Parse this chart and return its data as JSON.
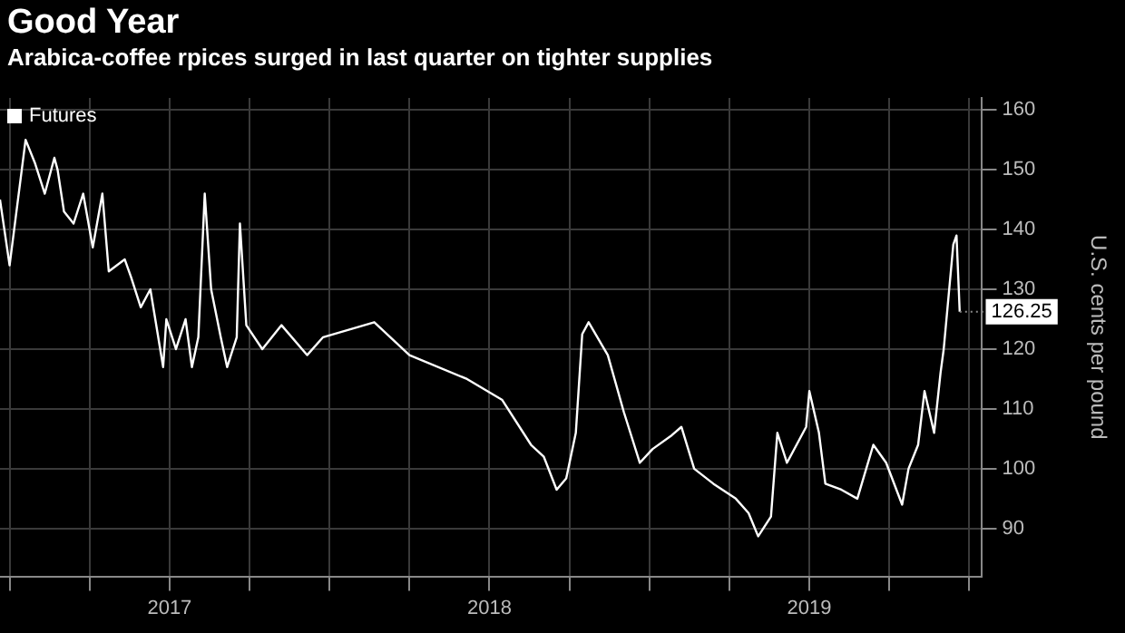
{
  "chart_data": {
    "type": "line",
    "title": "Good Year",
    "subtitle": "Arabica-coffee rpices surged in last quarter on tighter supplies",
    "ylabel": "U.S. cents per pound",
    "series": [
      {
        "name": "Futures",
        "color": "#ffffff",
        "x": [
          2016.97,
          2017.0,
          2017.05,
          2017.08,
          2017.11,
          2017.14,
          2017.15,
          2017.17,
          2017.2,
          2017.23,
          2017.26,
          2017.29,
          2017.31,
          2017.36,
          2017.38,
          2017.41,
          2017.44,
          2017.48,
          2017.49,
          2017.52,
          2017.55,
          2017.57,
          2017.59,
          2017.61,
          2017.63,
          2017.66,
          2017.68,
          2017.71,
          2017.72,
          2017.74,
          2017.79,
          2017.85,
          2017.93,
          2017.98,
          2018.14,
          2018.25,
          2018.43,
          2018.54,
          2018.63,
          2018.67,
          2018.71,
          2018.74,
          2018.77,
          2018.79,
          2018.81,
          2018.87,
          2018.92,
          2018.97,
          2019.01,
          2019.07,
          2019.1,
          2019.14,
          2019.2,
          2019.27,
          2019.31,
          2019.34,
          2019.38,
          2019.4,
          2019.43,
          2019.49,
          2019.5,
          2019.53,
          2019.55,
          2019.6,
          2019.65,
          2019.7,
          2019.74,
          2019.79,
          2019.81,
          2019.84,
          2019.86,
          2019.89,
          2019.91,
          2019.92,
          2019.95,
          2019.96,
          2019.97
        ],
        "values": [
          145,
          134,
          155,
          151,
          146,
          152,
          150,
          143,
          141,
          146,
          137,
          146,
          133,
          135,
          132,
          127,
          130,
          117,
          125,
          120,
          125,
          117,
          122,
          146,
          130,
          122,
          117,
          122,
          141,
          124,
          120,
          124,
          119,
          122,
          124.5,
          119,
          115,
          111.5,
          104,
          102,
          96.5,
          98.4,
          106,
          122.5,
          124.5,
          119,
          109.5,
          101,
          103.3,
          105.6,
          107,
          100,
          97.5,
          95,
          92.6,
          88.7,
          92,
          106,
          101,
          107,
          113,
          106,
          97.5,
          96.5,
          95,
          104,
          101,
          94,
          100,
          104,
          113,
          106,
          116,
          120,
          137.5,
          139,
          126.25
        ]
      }
    ],
    "xlim": [
      2016.97,
      2020.04
    ],
    "xticks": [
      {
        "value": 2017,
        "label": null
      },
      {
        "value": 2017.25,
        "label": null
      },
      {
        "value": 2017.5,
        "label": "2017"
      },
      {
        "value": 2017.75,
        "label": null
      },
      {
        "value": 2018,
        "label": null
      },
      {
        "value": 2018.25,
        "label": null
      },
      {
        "value": 2018.5,
        "label": "2018"
      },
      {
        "value": 2018.75,
        "label": null
      },
      {
        "value": 2019,
        "label": null
      },
      {
        "value": 2019.25,
        "label": null
      },
      {
        "value": 2019.5,
        "label": "2019"
      },
      {
        "value": 2019.75,
        "label": null
      },
      {
        "value": 2020,
        "label": null
      }
    ],
    "ylim": [
      82,
      162
    ],
    "yticks": [
      90,
      100,
      110,
      120,
      130,
      140,
      150,
      160
    ],
    "grid": true,
    "legend": "top left",
    "marker": "none",
    "line_style": "solid",
    "annotations": [
      {
        "text": "126.25",
        "x": 2019.97,
        "y": 126.25
      }
    ]
  }
}
